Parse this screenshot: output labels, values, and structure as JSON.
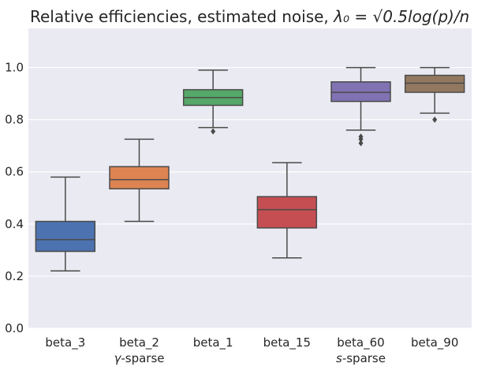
{
  "chart_data": {
    "type": "box",
    "title_prefix": "Relative efficiencies, estimated noise, ",
    "title_math": "λ₀ = √0.5log(p)/n",
    "xlabel": "",
    "ylabel": "",
    "ylim": [
      0.0,
      1.15
    ],
    "yticks": [
      "0.0",
      "0.2",
      "0.4",
      "0.6",
      "0.8",
      "1.0"
    ],
    "grid": true,
    "categories": [
      "beta_3",
      "beta_2",
      "beta_1",
      "beta_15",
      "beta_60",
      "beta_90"
    ],
    "group_labels": [
      {
        "text": "γ-sparse",
        "category": "beta_2"
      },
      {
        "text": "s-sparse",
        "category": "beta_60"
      }
    ],
    "boxes": [
      {
        "name": "beta_3",
        "color": "#4c72b0",
        "whisker_low": 0.22,
        "q1": 0.295,
        "median": 0.34,
        "q3": 0.41,
        "whisker_high": 0.58,
        "outliers": []
      },
      {
        "name": "beta_2",
        "color": "#dd8452",
        "whisker_low": 0.41,
        "q1": 0.535,
        "median": 0.57,
        "q3": 0.62,
        "whisker_high": 0.725,
        "outliers": []
      },
      {
        "name": "beta_1",
        "color": "#55a868",
        "whisker_low": 0.77,
        "q1": 0.855,
        "median": 0.885,
        "q3": 0.915,
        "whisker_high": 0.99,
        "outliers": [
          0.755
        ]
      },
      {
        "name": "beta_15",
        "color": "#c44e52",
        "whisker_low": 0.27,
        "q1": 0.385,
        "median": 0.455,
        "q3": 0.505,
        "whisker_high": 0.635,
        "outliers": []
      },
      {
        "name": "beta_60",
        "color": "#8172b3",
        "whisker_low": 0.76,
        "q1": 0.87,
        "median": 0.905,
        "q3": 0.945,
        "whisker_high": 1.0,
        "outliers": [
          0.735,
          0.725,
          0.71
        ]
      },
      {
        "name": "beta_90",
        "color": "#937860",
        "whisker_low": 0.825,
        "q1": 0.905,
        "median": 0.94,
        "q3": 0.97,
        "whisker_high": 1.0,
        "outliers": [
          0.8
        ]
      }
    ]
  }
}
